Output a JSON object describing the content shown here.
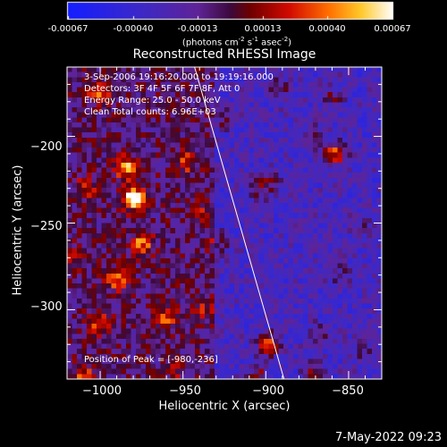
{
  "colorbar": {
    "ticks": [
      "-0.00067",
      "-0.00040",
      "-0.00013",
      "0.00013",
      "0.00040",
      "0.00067"
    ],
    "range": [
      -0.00067,
      0.00067
    ]
  },
  "units": {
    "prefix": "(photons cm",
    "exp1": "-2",
    "mid1": " s",
    "exp2": "-1",
    "mid2": " asec",
    "exp3": "-2",
    "suffix": ")"
  },
  "chart_data": {
    "type": "heatmap",
    "title": "Reconstructed RHESSI Image",
    "xlabel": "Heliocentric X (arcsec)",
    "ylabel": "Heliocentric Y (arcsec)",
    "xlim": [
      -1020,
      -830
    ],
    "ylim": [
      -340,
      -160
    ],
    "xticks": [
      -1000,
      -950,
      -900,
      -850
    ],
    "yticks": [
      -200,
      -250,
      -300
    ],
    "xtick_labels": [
      "−1000",
      "−950",
      "−900",
      "−850"
    ],
    "ytick_labels": [
      "−200",
      "−250",
      "−300"
    ],
    "peak": [
      -980,
      -236
    ],
    "limb_line": [
      [
        -943,
        -160
      ],
      [
        -889,
        -340
      ]
    ],
    "hotspots": [
      {
        "x": -980,
        "y": -236,
        "v": 1.0
      },
      {
        "x": -985,
        "y": -218,
        "v": 0.8
      },
      {
        "x": -975,
        "y": -262,
        "v": 0.7
      },
      {
        "x": -990,
        "y": -282,
        "v": 0.7
      },
      {
        "x": -960,
        "y": -305,
        "v": 0.65
      },
      {
        "x": -1000,
        "y": -175,
        "v": 0.7
      },
      {
        "x": -1008,
        "y": -230,
        "v": 0.6
      },
      {
        "x": -1000,
        "y": -308,
        "v": 0.65
      },
      {
        "x": -1010,
        "y": -338,
        "v": 0.6
      },
      {
        "x": -948,
        "y": -215,
        "v": 0.6
      },
      {
        "x": -940,
        "y": -245,
        "v": 0.55
      },
      {
        "x": -928,
        "y": -262,
        "v": 0.55
      },
      {
        "x": -925,
        "y": -190,
        "v": 0.55
      },
      {
        "x": -938,
        "y": -300,
        "v": 0.55
      },
      {
        "x": -905,
        "y": -230,
        "v": 0.6
      },
      {
        "x": -895,
        "y": -226,
        "v": 0.55
      },
      {
        "x": -898,
        "y": -320,
        "v": 0.85
      },
      {
        "x": -905,
        "y": -338,
        "v": 0.6
      },
      {
        "x": -892,
        "y": -172,
        "v": 0.55
      },
      {
        "x": -860,
        "y": -178,
        "v": 0.55
      },
      {
        "x": -858,
        "y": -210,
        "v": 0.8
      },
      {
        "x": -870,
        "y": -200,
        "v": 0.55
      },
      {
        "x": -855,
        "y": -280,
        "v": 0.5
      },
      {
        "x": -868,
        "y": -315,
        "v": 0.55
      },
      {
        "x": -872,
        "y": -335,
        "v": 0.6
      },
      {
        "x": -840,
        "y": -252,
        "v": 0.45
      },
      {
        "x": -840,
        "y": -325,
        "v": 0.5
      },
      {
        "x": -955,
        "y": -335,
        "v": 0.5
      },
      {
        "x": -1015,
        "y": -270,
        "v": 0.5
      }
    ],
    "grid": false
  },
  "info": {
    "line1": "3-Sep-2006 19:16:20.000 to 19:19:16.000",
    "line2": "Detectors: 3F 4F 5F 6F 7F 8F, Att 0",
    "line3": "Energy Range: 25.0 - 50.0 keV",
    "line4": "Clean    Total counts: 6.96E+03"
  },
  "peak_text": "Position of Peak = [-980,-236]",
  "timestamp": "7-May-2022 09:23"
}
